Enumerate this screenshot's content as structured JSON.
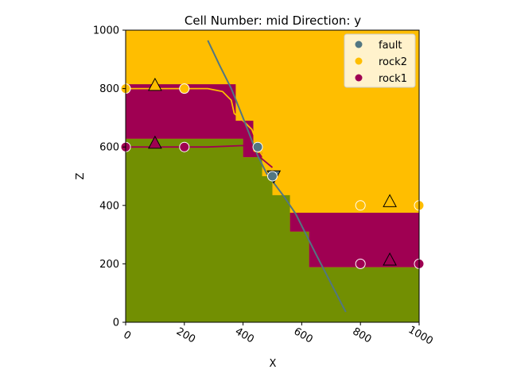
{
  "chart_data": {
    "type": "geological_section",
    "title": "Cell Number: mid Direction: y",
    "xlabel": "X",
    "ylabel": "Z",
    "xlim": [
      0,
      1000
    ],
    "ylim": [
      0,
      1000
    ],
    "xticks": [
      "0",
      "200",
      "400",
      "600",
      "800",
      "1000"
    ],
    "yticks": [
      "0",
      "200",
      "400",
      "600",
      "800",
      "1000"
    ],
    "xtick_rotation": 30,
    "grid": false,
    "legend_position": "top-right",
    "legend": [
      {
        "label": "fault",
        "color": "#527682"
      },
      {
        "label": "rock2",
        "color": "#ffbe00"
      },
      {
        "label": "rock1",
        "color": "#9f0052"
      }
    ],
    "colors": {
      "rock2": "#ffbe00",
      "rock1": "#9f0052",
      "basement": "#728f02",
      "fault": "#527682"
    },
    "regions": {
      "basement": [
        [
          0,
          0
        ],
        [
          0,
          628
        ],
        [
          400,
          628
        ],
        [
          400,
          565
        ],
        [
          465,
          565
        ],
        [
          465,
          500
        ],
        [
          500,
          500
        ],
        [
          500,
          435
        ],
        [
          560,
          435
        ],
        [
          560,
          310
        ],
        [
          625,
          310
        ],
        [
          625,
          188
        ],
        [
          1000,
          188
        ],
        [
          1000,
          0
        ]
      ],
      "rock1": [
        [
          0,
          628
        ],
        [
          0,
          815
        ],
        [
          375,
          815
        ],
        [
          375,
          690
        ],
        [
          435,
          690
        ],
        [
          435,
          580
        ],
        [
          465,
          580
        ],
        [
          465,
          565
        ],
        [
          400,
          565
        ],
        [
          400,
          628
        ]
      ],
      "rock1_right": [
        [
          560,
          310
        ],
        [
          560,
          375
        ],
        [
          1000,
          375
        ],
        [
          1000,
          188
        ],
        [
          625,
          188
        ],
        [
          625,
          310
        ]
      ]
    },
    "surface_lines": [
      {
        "name": "rock2",
        "points": [
          [
            0,
            800
          ],
          [
            280,
            800
          ],
          [
            330,
            790
          ],
          [
            360,
            760
          ],
          [
            370,
            715
          ],
          [
            400,
            690
          ],
          [
            430,
            660
          ],
          [
            460,
            580
          ],
          [
            480,
            550
          ],
          [
            500,
            530
          ]
        ]
      },
      {
        "name": "rock1",
        "points": [
          [
            0,
            600
          ],
          [
            280,
            600
          ],
          [
            400,
            605
          ],
          [
            440,
            580
          ],
          [
            470,
            555
          ],
          [
            500,
            530
          ]
        ]
      }
    ],
    "fault_trace": [
      [
        280,
        965
      ],
      [
        320,
        880
      ],
      [
        360,
        800
      ],
      [
        400,
        700
      ],
      [
        450,
        570
      ],
      [
        480,
        510
      ],
      [
        540,
        430
      ],
      [
        580,
        370
      ],
      [
        650,
        230
      ],
      [
        750,
        35
      ]
    ],
    "points": [
      {
        "series": "rock2",
        "x": 0,
        "z": 800
      },
      {
        "series": "rock2",
        "x": 200,
        "z": 800
      },
      {
        "series": "rock2",
        "x": 800,
        "z": 400
      },
      {
        "series": "rock2",
        "x": 1000,
        "z": 400
      },
      {
        "series": "rock1",
        "x": 0,
        "z": 600
      },
      {
        "series": "rock1",
        "x": 200,
        "z": 600
      },
      {
        "series": "rock1",
        "x": 800,
        "z": 200
      },
      {
        "series": "rock1",
        "x": 1000,
        "z": 200
      },
      {
        "series": "fault",
        "x": 450,
        "z": 600
      },
      {
        "series": "fault",
        "x": 500,
        "z": 500
      }
    ],
    "orientations": [
      {
        "series": "rock2",
        "x": 100,
        "z": 810,
        "direction": "up"
      },
      {
        "series": "rock1",
        "x": 100,
        "z": 612,
        "direction": "up"
      },
      {
        "series": "rock2",
        "x": 900,
        "z": 412,
        "direction": "up"
      },
      {
        "series": "rock1",
        "x": 900,
        "z": 212,
        "direction": "up"
      },
      {
        "series": "fault",
        "x": 505,
        "z": 502,
        "direction": "down"
      }
    ]
  }
}
